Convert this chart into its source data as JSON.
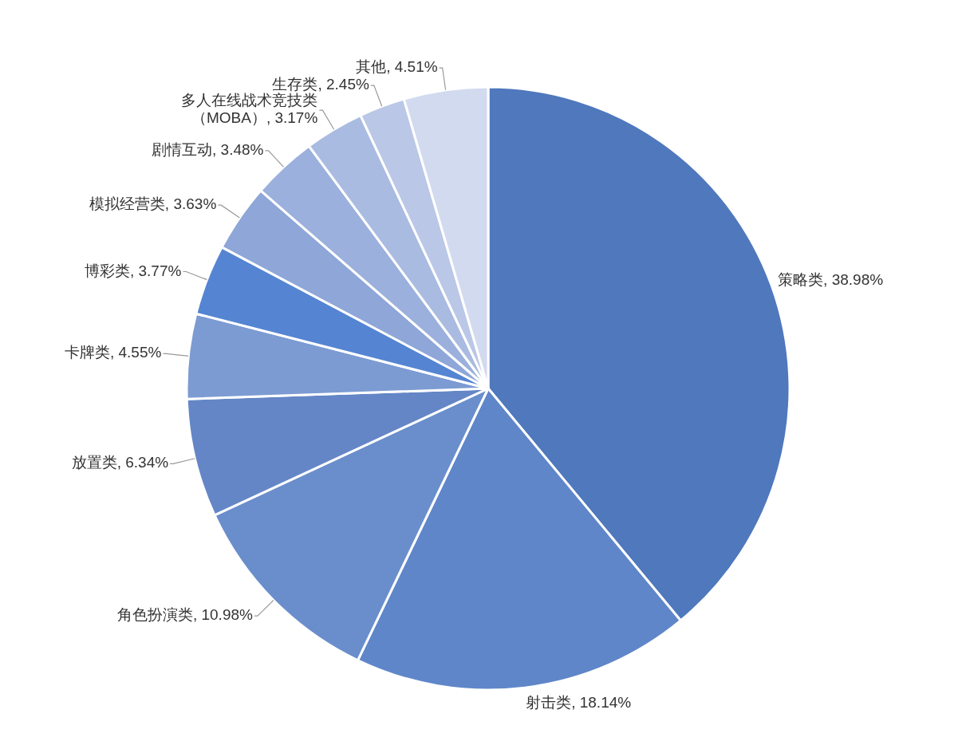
{
  "chart_data": {
    "type": "pie",
    "categories": [
      "策略类",
      "射击类",
      "角色扮演类",
      "放置类",
      "卡牌类",
      "博彩类",
      "模拟经营类",
      "剧情互动",
      "多人在线战术竞技类（MOBA）",
      "生存类",
      "其他"
    ],
    "values": [
      38.98,
      18.14,
      10.98,
      6.34,
      4.55,
      3.77,
      3.63,
      3.48,
      3.17,
      2.45,
      4.51
    ],
    "value_labels": [
      "38.98%",
      "18.14%",
      "10.98%",
      "6.34%",
      "4.55%",
      "3.77%",
      "3.63%",
      "3.48%",
      "3.17%",
      "2.45%",
      "4.51%"
    ],
    "colors": [
      "#4f78bd",
      "#5f86c9",
      "#6a8ecc",
      "#6486c6",
      "#7c9bd3",
      "#5585d2",
      "#8ea6d8",
      "#9bb0dc",
      "#aabbe1",
      "#bac7e6",
      "#d2daef"
    ]
  }
}
